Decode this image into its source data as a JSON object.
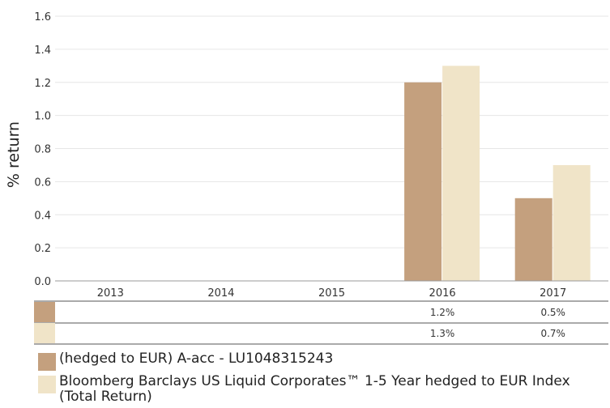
{
  "chart_data": {
    "type": "bar",
    "ylabel": "% return",
    "ylim": [
      0,
      1.6
    ],
    "yticks": [
      "0.0",
      "0.2",
      "0.4",
      "0.6",
      "0.8",
      "1.0",
      "1.2",
      "1.4",
      "1.6"
    ],
    "categories": [
      "2013",
      "2014",
      "2015",
      "2016",
      "2017"
    ],
    "series": [
      {
        "name": "(hedged to EUR) A-acc - LU1048315243",
        "color": "#c4a07e",
        "values": [
          null,
          null,
          null,
          1.2,
          0.5
        ],
        "labels": [
          "",
          "",
          "",
          "1.2%",
          "0.5%"
        ]
      },
      {
        "name": "Bloomberg Barclays US Liquid Corporates™ 1-5 Year hedged to EUR Index (Total Return)",
        "color": "#f0e4c8",
        "values": [
          null,
          null,
          null,
          1.3,
          0.7
        ],
        "labels": [
          "",
          "",
          "",
          "1.3%",
          "0.7%"
        ]
      }
    ],
    "grid": true,
    "legend": "bottom"
  }
}
